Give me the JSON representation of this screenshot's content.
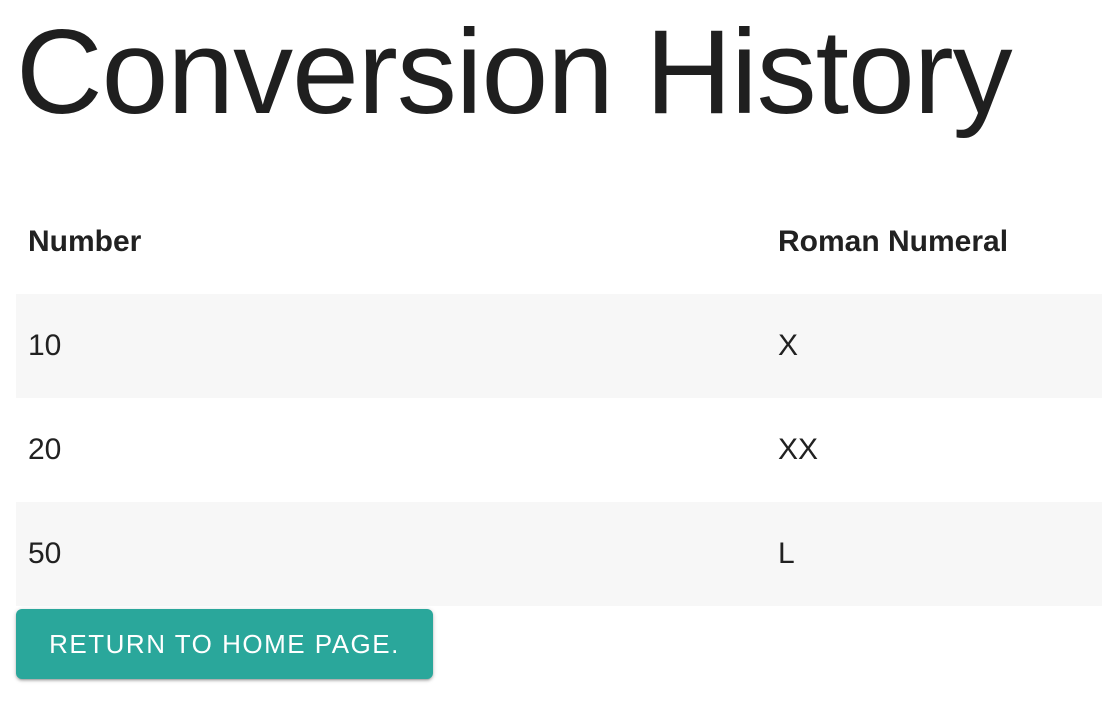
{
  "page": {
    "title": "Conversion History"
  },
  "table": {
    "headers": {
      "number": "Number",
      "roman": "Roman Numeral"
    },
    "rows": [
      {
        "number": "10",
        "roman": "X"
      },
      {
        "number": "20",
        "roman": "XX"
      },
      {
        "number": "50",
        "roman": "L"
      }
    ]
  },
  "button": {
    "label": "RETURN TO HOME PAGE."
  },
  "colors": {
    "accent_teal": "#2aa79b",
    "row_stripe": "#f7f7f7",
    "text": "#212121",
    "button_text": "#ffffff",
    "background": "#ffffff"
  }
}
